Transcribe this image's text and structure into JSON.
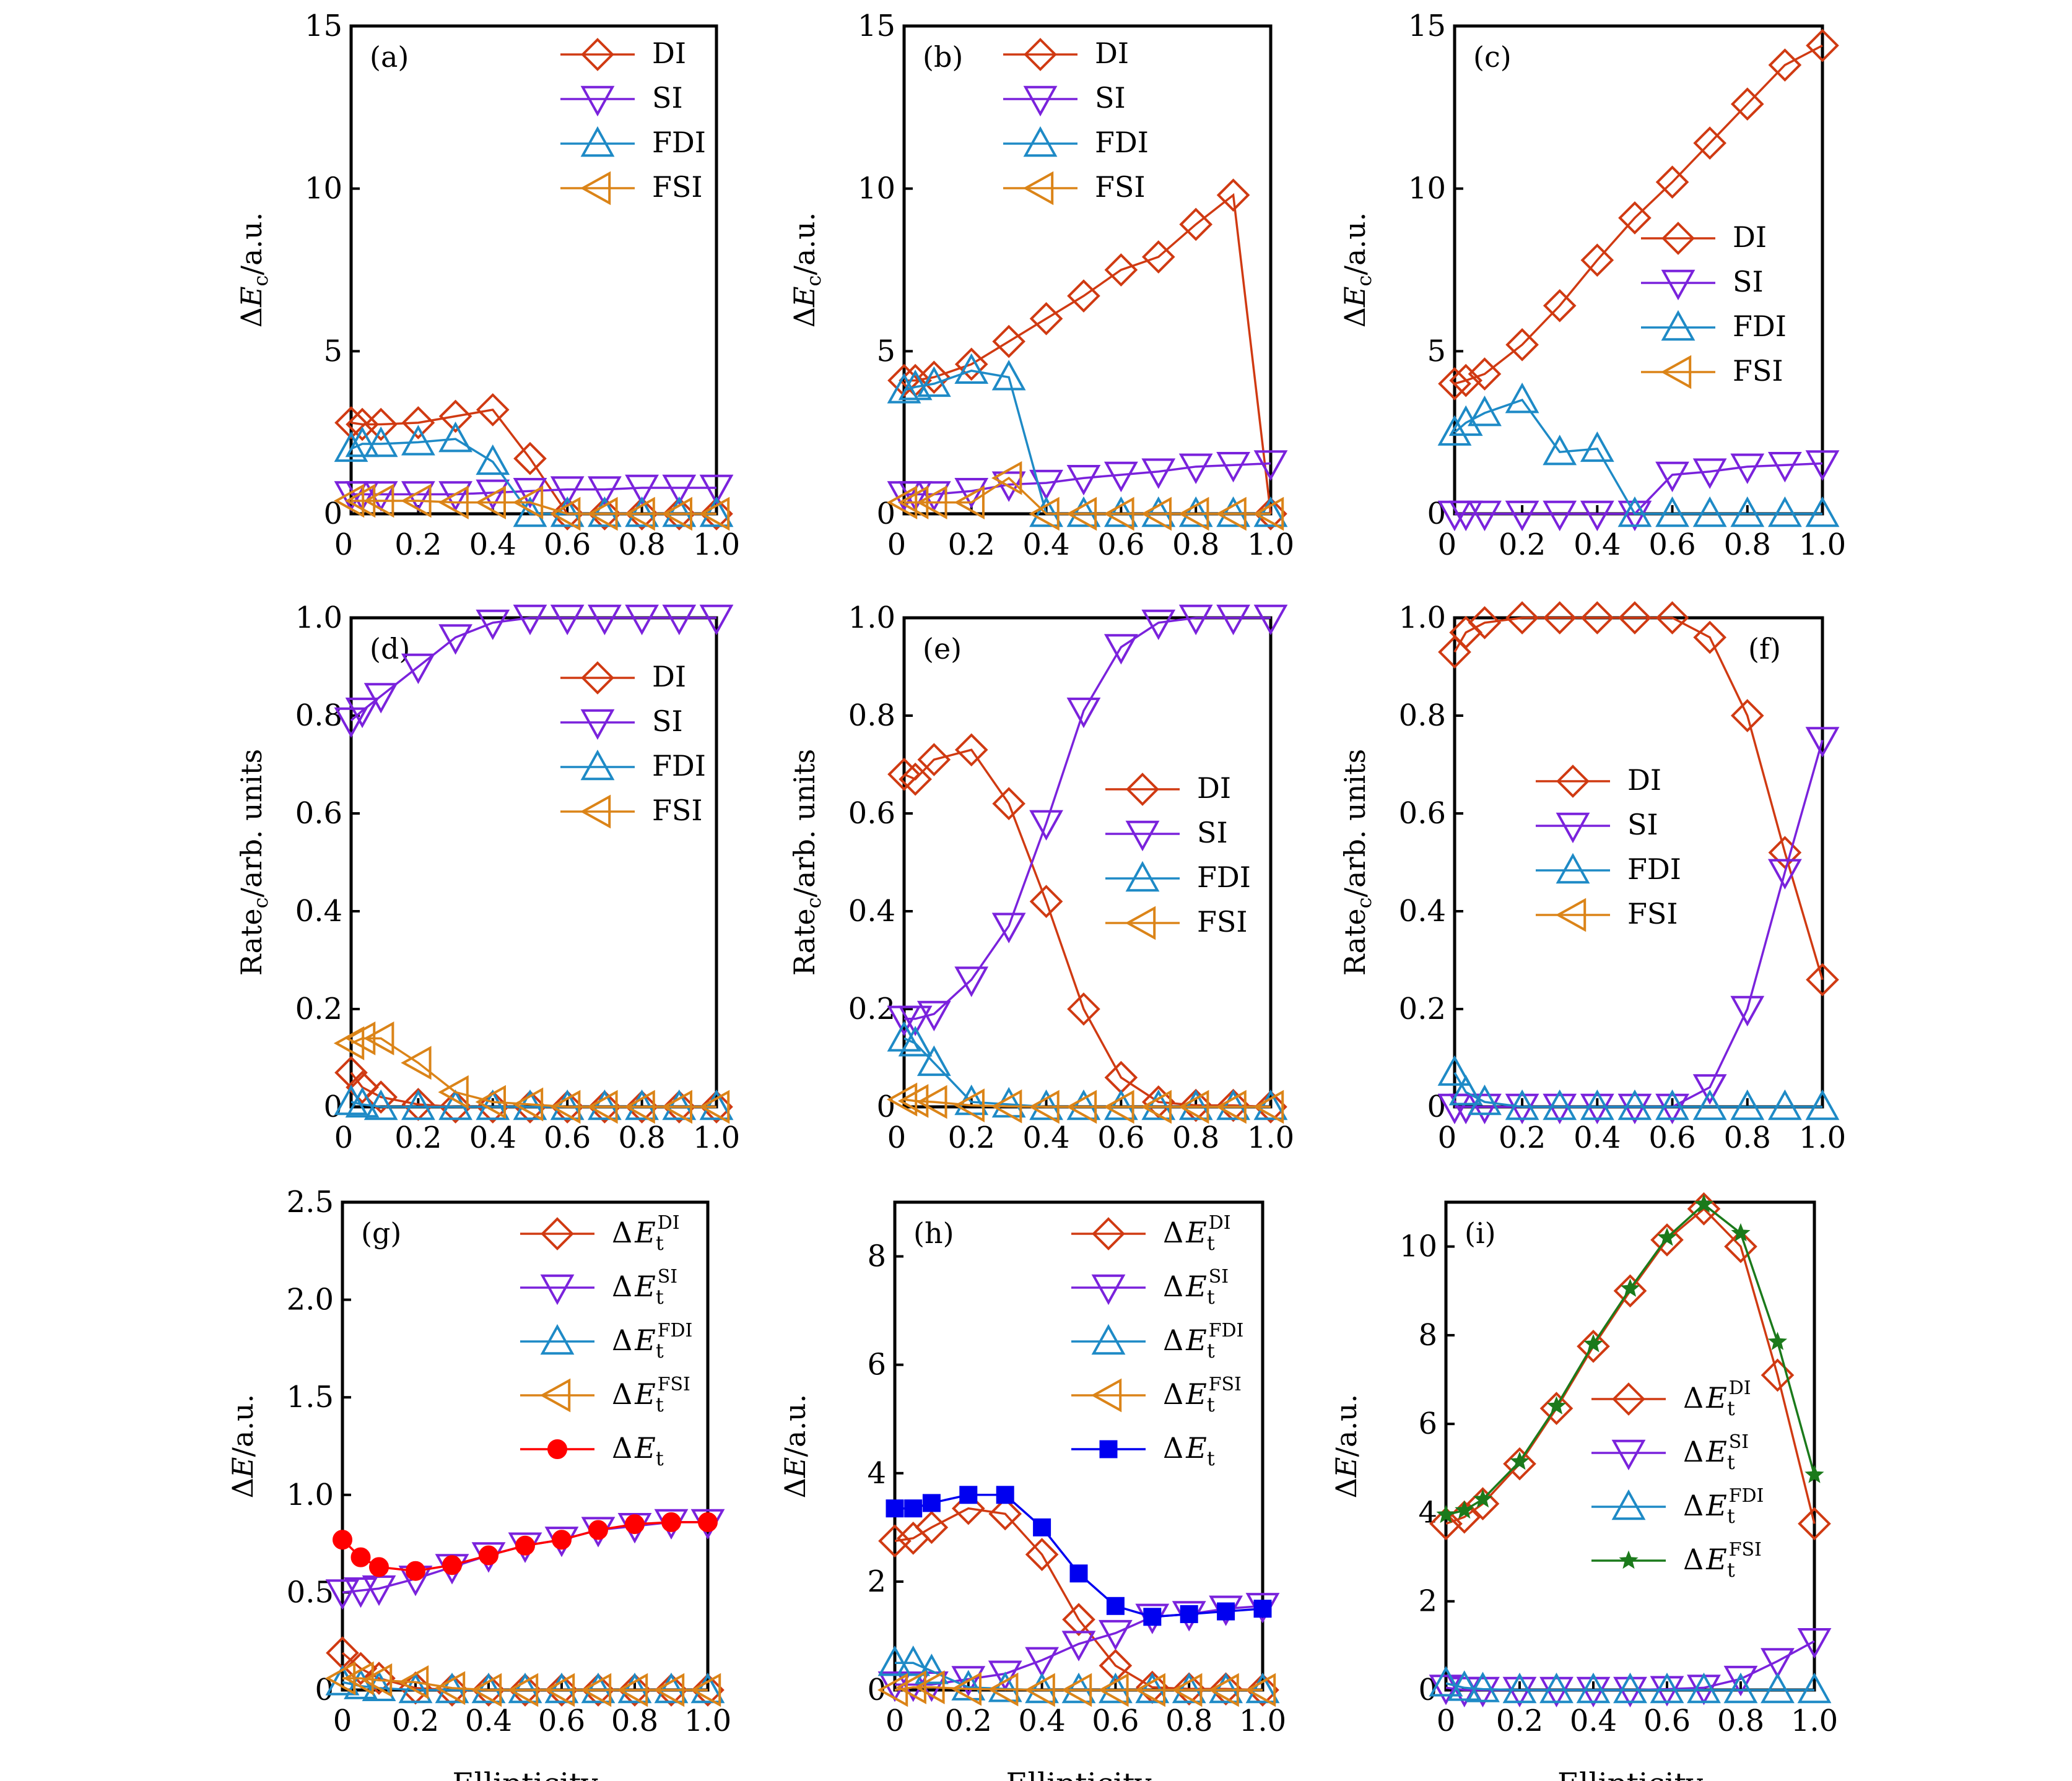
{
  "colors": {
    "DI": "#D03A12",
    "SI": "#7A22DC",
    "FDI": "#1E8AC6",
    "FSI": "#DB8418",
    "Et_g": "#FF0000",
    "Et_h": "#0000F0",
    "FSI_i": "#1B7A1B"
  },
  "chart_data": [
    {
      "id": "a",
      "panel_label": "(a)",
      "type": "line",
      "ylabel": "ΔE_c/a.u.",
      "xlabel": "",
      "xlim": [
        0.02,
        1.0
      ],
      "ylim": [
        0,
        15
      ],
      "yticks": [
        0,
        5,
        10,
        15
      ],
      "xticks": [
        0,
        0.2,
        0.4,
        0.6,
        0.8,
        1.0
      ],
      "legend": "top-right",
      "x": [
        0.02,
        0.05,
        0.1,
        0.2,
        0.3,
        0.4,
        0.5,
        0.6,
        0.7,
        0.8,
        0.9,
        1.0
      ],
      "series": [
        {
          "name": "DI",
          "marker": "diamond",
          "values": [
            2.8,
            2.75,
            2.75,
            2.8,
            3.0,
            3.2,
            1.7,
            0,
            0,
            0,
            0,
            0
          ]
        },
        {
          "name": "SI",
          "marker": "triangle-down",
          "values": [
            0.6,
            0.6,
            0.6,
            0.6,
            0.6,
            0.65,
            0.7,
            0.75,
            0.75,
            0.8,
            0.8,
            0.8
          ]
        },
        {
          "name": "FDI",
          "marker": "triangle-up",
          "values": [
            2.0,
            2.15,
            2.15,
            2.2,
            2.3,
            1.6,
            0,
            0,
            0,
            0,
            0,
            0
          ]
        },
        {
          "name": "FSI",
          "marker": "triangle-left",
          "values": [
            0.4,
            0.4,
            0.4,
            0.4,
            0.35,
            0.35,
            0.35,
            0,
            0,
            0,
            0,
            0
          ]
        }
      ]
    },
    {
      "id": "b",
      "panel_label": "(b)",
      "type": "line",
      "ylabel": "ΔE_c/a.u.",
      "xlabel": "",
      "xlim": [
        0.02,
        1.0
      ],
      "ylim": [
        0,
        15
      ],
      "yticks": [
        0,
        5,
        10,
        15
      ],
      "xticks": [
        0,
        0.2,
        0.4,
        0.6,
        0.8,
        1.0
      ],
      "legend": "top-center",
      "x": [
        0.02,
        0.05,
        0.1,
        0.2,
        0.3,
        0.4,
        0.5,
        0.6,
        0.7,
        0.8,
        0.9,
        1.0
      ],
      "series": [
        {
          "name": "DI",
          "marker": "diamond",
          "values": [
            4.1,
            4.1,
            4.2,
            4.6,
            5.3,
            6.0,
            6.7,
            7.5,
            7.9,
            8.9,
            9.8,
            0
          ]
        },
        {
          "name": "SI",
          "marker": "triangle-down",
          "values": [
            0.6,
            0.6,
            0.6,
            0.7,
            0.9,
            0.95,
            1.1,
            1.2,
            1.3,
            1.45,
            1.5,
            1.55
          ]
        },
        {
          "name": "FDI",
          "marker": "triangle-up",
          "values": [
            3.8,
            3.9,
            4.0,
            4.4,
            4.2,
            0,
            0,
            0,
            0,
            0,
            0,
            0
          ]
        },
        {
          "name": "FSI",
          "marker": "triangle-left",
          "values": [
            0.35,
            0.35,
            0.35,
            0.35,
            1.1,
            0,
            0,
            0,
            0,
            0,
            0,
            0
          ]
        }
      ]
    },
    {
      "id": "c",
      "panel_label": "(c)",
      "type": "line",
      "ylabel": "ΔE_c/a.u.",
      "xlabel": "",
      "xlim": [
        0.02,
        1.0
      ],
      "ylim": [
        0,
        15
      ],
      "yticks": [
        0,
        5,
        10,
        15
      ],
      "xticks": [
        0,
        0.2,
        0.4,
        0.6,
        0.8,
        1.0
      ],
      "legend": "center-right",
      "x": [
        0.02,
        0.05,
        0.1,
        0.2,
        0.3,
        0.4,
        0.5,
        0.6,
        0.7,
        0.8,
        0.9,
        1.0
      ],
      "series": [
        {
          "name": "DI",
          "marker": "diamond",
          "values": [
            4.0,
            4.1,
            4.3,
            5.2,
            6.4,
            7.8,
            9.1,
            10.2,
            11.4,
            12.6,
            13.8,
            14.4
          ]
        },
        {
          "name": "SI",
          "marker": "triangle-down",
          "values": [
            0,
            0,
            0,
            0,
            0,
            0,
            0,
            1.2,
            1.3,
            1.45,
            1.5,
            1.55
          ]
        },
        {
          "name": "FDI",
          "marker": "triangle-up",
          "values": [
            2.5,
            2.8,
            3.1,
            3.5,
            1.9,
            2.0,
            0,
            0,
            0,
            0,
            0,
            0
          ]
        },
        {
          "name": "FSI",
          "marker": "triangle-left",
          "values": []
        }
      ]
    },
    {
      "id": "d",
      "panel_label": "(d)",
      "type": "line",
      "ylabel": "Rate_c/arb. units",
      "xlabel": "",
      "xlim": [
        0.02,
        1.0
      ],
      "ylim": [
        0,
        1.0
      ],
      "yticks": [
        0,
        0.2,
        0.4,
        0.6,
        0.8,
        1.0
      ],
      "xticks": [
        0,
        0.2,
        0.4,
        0.6,
        0.8,
        1.0
      ],
      "legend": "top-right",
      "x": [
        0.02,
        0.05,
        0.1,
        0.2,
        0.3,
        0.4,
        0.5,
        0.6,
        0.7,
        0.8,
        0.9,
        1.0
      ],
      "series": [
        {
          "name": "DI",
          "marker": "diamond",
          "values": [
            0.07,
            0.04,
            0.02,
            0.005,
            0,
            0,
            0,
            0,
            0,
            0,
            0,
            0
          ]
        },
        {
          "name": "SI",
          "marker": "triangle-down",
          "values": [
            0.79,
            0.81,
            0.84,
            0.9,
            0.96,
            0.99,
            1.0,
            1.0,
            1.0,
            1.0,
            1.0,
            1.0
          ]
        },
        {
          "name": "FDI",
          "marker": "triangle-up",
          "values": [
            0.01,
            0.005,
            0,
            0,
            0,
            0,
            0,
            0,
            0,
            0,
            0,
            0
          ]
        },
        {
          "name": "FSI",
          "marker": "triangle-left",
          "values": [
            0.13,
            0.14,
            0.14,
            0.09,
            0.03,
            0.01,
            0.005,
            0,
            0,
            0,
            0,
            0
          ]
        }
      ]
    },
    {
      "id": "e",
      "panel_label": "(e)",
      "type": "line",
      "ylabel": "Rate_c/arb. units",
      "xlabel": "",
      "xlim": [
        0.02,
        1.0
      ],
      "ylim": [
        0,
        1.0
      ],
      "yticks": [
        0,
        0.2,
        0.4,
        0.6,
        0.8,
        1.0
      ],
      "xticks": [
        0,
        0.2,
        0.4,
        0.6,
        0.8,
        1.0
      ],
      "legend": "center-right",
      "x": [
        0.02,
        0.05,
        0.1,
        0.2,
        0.3,
        0.4,
        0.5,
        0.6,
        0.7,
        0.8,
        0.9,
        1.0
      ],
      "series": [
        {
          "name": "DI",
          "marker": "diamond",
          "values": [
            0.68,
            0.67,
            0.71,
            0.73,
            0.62,
            0.42,
            0.2,
            0.06,
            0.01,
            0.003,
            0.003,
            0
          ]
        },
        {
          "name": "SI",
          "marker": "triangle-down",
          "values": [
            0.18,
            0.18,
            0.19,
            0.26,
            0.37,
            0.58,
            0.81,
            0.94,
            0.99,
            1.0,
            1.0,
            1.0
          ]
        },
        {
          "name": "FDI",
          "marker": "triangle-up",
          "values": [
            0.14,
            0.13,
            0.09,
            0.01,
            0.005,
            0,
            0,
            0,
            0,
            0,
            0,
            0
          ]
        },
        {
          "name": "FSI",
          "marker": "triangle-left",
          "values": [
            0.015,
            0.012,
            0.01,
            0.003,
            0.001,
            0,
            0,
            0,
            0,
            0,
            0,
            0
          ]
        }
      ]
    },
    {
      "id": "f",
      "panel_label": "(f)",
      "type": "line",
      "ylabel": "Rate_c/arb. units",
      "xlabel": "",
      "xlim": [
        0.02,
        1.0
      ],
      "ylim": [
        0,
        1.0
      ],
      "yticks": [
        0,
        0.2,
        0.4,
        0.6,
        0.8,
        1.0
      ],
      "xticks": [
        0,
        0.2,
        0.4,
        0.6,
        0.8,
        1.0
      ],
      "legend": "center",
      "x": [
        0.02,
        0.05,
        0.1,
        0.2,
        0.3,
        0.4,
        0.5,
        0.6,
        0.7,
        0.8,
        0.9,
        1.0
      ],
      "series": [
        {
          "name": "DI",
          "marker": "diamond",
          "values": [
            0.93,
            0.97,
            0.99,
            1.0,
            1.0,
            1.0,
            1.0,
            1.0,
            0.96,
            0.8,
            0.52,
            0.26
          ]
        },
        {
          "name": "SI",
          "marker": "triangle-down",
          "values": [
            0,
            0,
            0,
            0,
            0,
            0,
            0,
            0,
            0.04,
            0.2,
            0.48,
            0.75
          ]
        },
        {
          "name": "FDI",
          "marker": "triangle-up",
          "values": [
            0.07,
            0.03,
            0.01,
            0,
            0,
            0,
            0,
            0,
            0,
            0,
            0,
            0
          ]
        },
        {
          "name": "FSI",
          "marker": "triangle-left",
          "values": []
        }
      ]
    },
    {
      "id": "g",
      "panel_label": "(g)",
      "type": "line",
      "ylabel": "ΔE/a.u.",
      "xlabel": "Ellipticity",
      "xlim": [
        0,
        1.0
      ],
      "ylim": [
        0,
        2.5
      ],
      "yticks": [
        0,
        0.5,
        1.0,
        1.5,
        2.0,
        2.5
      ],
      "xticks": [
        0,
        0.2,
        0.4,
        0.6,
        0.8,
        1.0
      ],
      "legend": "top-right",
      "x": [
        0,
        0.05,
        0.1,
        0.2,
        0.3,
        0.4,
        0.5,
        0.6,
        0.7,
        0.8,
        0.9,
        1.0
      ],
      "series": [
        {
          "name": "ΔE_t^DI",
          "marker": "diamond",
          "values": [
            0.19,
            0.11,
            0.06,
            0.01,
            0,
            0,
            0,
            0,
            0,
            0,
            0,
            0
          ]
        },
        {
          "name": "ΔE_t^SI",
          "marker": "triangle-down",
          "values": [
            0.5,
            0.51,
            0.52,
            0.57,
            0.63,
            0.69,
            0.74,
            0.77,
            0.82,
            0.84,
            0.86,
            0.86
          ]
        },
        {
          "name": "ΔE_t^FDI",
          "marker": "triangle-up",
          "values": [
            0.04,
            0.02,
            0.01,
            0,
            0,
            0,
            0,
            0,
            0,
            0,
            0,
            0
          ]
        },
        {
          "name": "ΔE_t^FSI",
          "marker": "triangle-left",
          "values": [
            0.06,
            0.06,
            0.05,
            0.04,
            0.01,
            0,
            0,
            0,
            0,
            0,
            0,
            0
          ]
        },
        {
          "name": "ΔE_t",
          "marker": "circle-filled",
          "values": [
            0.77,
            0.68,
            0.63,
            0.61,
            0.64,
            0.69,
            0.74,
            0.77,
            0.82,
            0.85,
            0.86,
            0.86
          ]
        }
      ]
    },
    {
      "id": "h",
      "panel_label": "(h)",
      "type": "line",
      "ylabel": "ΔE/a.u.",
      "xlabel": "Ellipticity",
      "xlim": [
        0,
        1.0
      ],
      "ylim": [
        0,
        9
      ],
      "yticks": [
        0,
        2,
        4,
        6,
        8
      ],
      "xticks": [
        0,
        0.2,
        0.4,
        0.6,
        0.8,
        1.0
      ],
      "legend": "top-right",
      "x": [
        0,
        0.05,
        0.1,
        0.2,
        0.3,
        0.4,
        0.5,
        0.6,
        0.7,
        0.8,
        0.9,
        1.0
      ],
      "series": [
        {
          "name": "ΔE_t^DI",
          "marker": "diamond",
          "values": [
            2.75,
            2.8,
            3.0,
            3.35,
            3.25,
            2.5,
            1.3,
            0.45,
            0.05,
            0.02,
            0.02,
            0
          ]
        },
        {
          "name": "ΔE_t^SI",
          "marker": "triangle-down",
          "values": [
            0.1,
            0.1,
            0.1,
            0.2,
            0.3,
            0.55,
            0.85,
            1.05,
            1.35,
            1.4,
            1.5,
            1.55
          ]
        },
        {
          "name": "ΔE_t^FDI",
          "marker": "triangle-up",
          "values": [
            0.5,
            0.5,
            0.35,
            0.05,
            0.02,
            0,
            0,
            0,
            0,
            0,
            0,
            0
          ]
        },
        {
          "name": "ΔE_t^FSI",
          "marker": "triangle-left",
          "values": [
            0,
            0.05,
            0.05,
            0.02,
            0.01,
            0,
            0,
            0,
            0,
            0,
            0,
            0
          ]
        },
        {
          "name": "ΔE_t",
          "marker": "square-filled",
          "values": [
            3.35,
            3.35,
            3.45,
            3.6,
            3.6,
            3.0,
            2.15,
            1.55,
            1.35,
            1.4,
            1.45,
            1.5
          ]
        }
      ]
    },
    {
      "id": "i",
      "panel_label": "(i)",
      "type": "line",
      "ylabel": "ΔE/a.u.",
      "xlabel": "Ellipticity",
      "xlim": [
        0,
        1.0
      ],
      "ylim": [
        0,
        11
      ],
      "yticks": [
        0,
        2,
        4,
        6,
        8,
        10
      ],
      "xticks": [
        0,
        0.2,
        0.4,
        0.6,
        0.8,
        1.0
      ],
      "legend": "center-right",
      "x": [
        0,
        0.05,
        0.1,
        0.2,
        0.3,
        0.4,
        0.5,
        0.6,
        0.7,
        0.8,
        0.9,
        1.0
      ],
      "series": [
        {
          "name": "ΔE_t^DI",
          "marker": "diamond",
          "values": [
            3.75,
            3.9,
            4.2,
            5.1,
            6.35,
            7.75,
            9.0,
            10.15,
            10.85,
            10.0,
            7.1,
            3.75
          ]
        },
        {
          "name": "ΔE_t^SI",
          "marker": "triangle-down",
          "values": [
            0.05,
            0,
            0,
            0,
            0,
            0,
            0,
            0.02,
            0.05,
            0.25,
            0.65,
            1.1
          ]
        },
        {
          "name": "ΔE_t^FDI",
          "marker": "triangle-up",
          "values": [
            0.15,
            0.05,
            0.02,
            0,
            0,
            0,
            0,
            0,
            0,
            0,
            0,
            0
          ]
        },
        {
          "name": "ΔE_t^FSI",
          "marker": "star-filled",
          "values": [
            3.95,
            4.05,
            4.3,
            5.15,
            6.4,
            7.8,
            9.05,
            10.2,
            10.95,
            10.3,
            7.85,
            4.85
          ]
        }
      ]
    }
  ]
}
